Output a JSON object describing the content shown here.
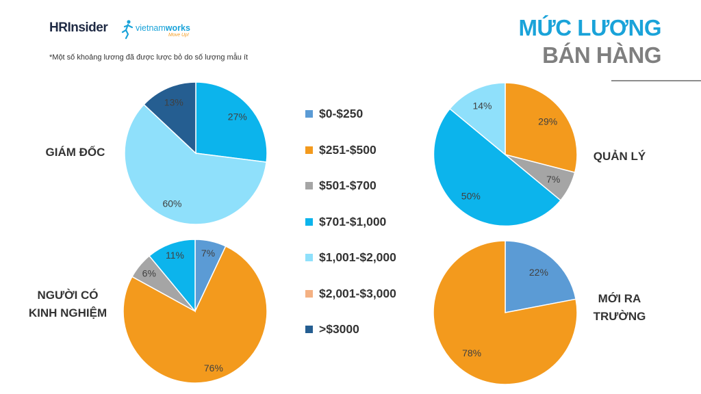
{
  "logo": {
    "hr": "HR",
    "insider": "Insider",
    "vnw_a": "vietnam",
    "vnw_b": "works",
    "vnw_tag": "Move Up!"
  },
  "note": "*Một số khoảng lương đã được lược bỏ do số lượng mẫu ít",
  "title_line1": "MỨC LƯƠNG",
  "title_line2": "BÁN HÀNG",
  "legend": [
    {
      "label": "$0-$250",
      "color": "#5b9bd5"
    },
    {
      "label": "$251-$500",
      "color": "#f39a1d"
    },
    {
      "label": "$501-$700",
      "color": "#a5a5a5"
    },
    {
      "label": "$701-$1,000",
      "color": "#0cb4ec"
    },
    {
      "label": "$1,001-$2,000",
      "color": "#8fe0fb"
    },
    {
      "label": "$2,001-$3,000",
      "color": "#f4b183"
    },
    {
      "label": ">$3000",
      "color": "#255e91"
    }
  ],
  "chart_data": [
    {
      "type": "pie",
      "title": "GIÁM ĐỐC",
      "slices": [
        {
          "category": "$701-$1,000",
          "value": 27,
          "label": "27%"
        },
        {
          "category": "$1,001-$2,000",
          "value": 60,
          "label": "60%"
        },
        {
          "category": ">$3000",
          "value": 13,
          "label": "13%"
        }
      ]
    },
    {
      "type": "pie",
      "title": "QUẢN LÝ",
      "slices": [
        {
          "category": "$251-$500",
          "value": 29,
          "label": "29%"
        },
        {
          "category": "$501-$700",
          "value": 7,
          "label": "7%"
        },
        {
          "category": "$701-$1,000",
          "value": 50,
          "label": "50%"
        },
        {
          "category": "$1,001-$2,000",
          "value": 14,
          "label": "14%"
        }
      ]
    },
    {
      "type": "pie",
      "title": "NGƯỜI CÓ\nKINH NGHIỆM",
      "slices": [
        {
          "category": "$0-$250",
          "value": 7,
          "label": "7%"
        },
        {
          "category": "$251-$500",
          "value": 76,
          "label": "76%"
        },
        {
          "category": "$501-$700",
          "value": 6,
          "label": "6%"
        },
        {
          "category": "$701-$1,000",
          "value": 11,
          "label": "11%"
        }
      ]
    },
    {
      "type": "pie",
      "title": "MỚI RA\nTRƯỜNG",
      "slices": [
        {
          "category": "$0-$250",
          "value": 22,
          "label": "22%"
        },
        {
          "category": "$251-$500",
          "value": 78,
          "label": "78%"
        }
      ]
    }
  ]
}
